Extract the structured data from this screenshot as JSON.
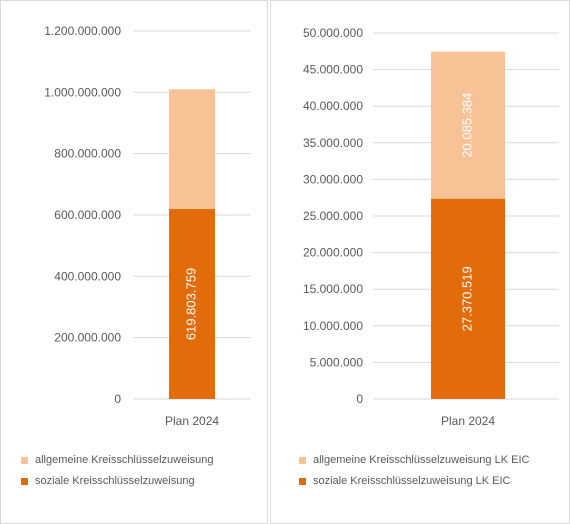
{
  "chart_data": [
    {
      "type": "bar",
      "stacked": true,
      "categories": [
        "Plan 2024"
      ],
      "series": [
        {
          "name": "soziale Kreisschlüsselzuweisung",
          "values": [
            619803759
          ],
          "label": "619.803.759",
          "color": "#e36c0a"
        },
        {
          "name": "allgemeine Kreisschlüsselzuweisung",
          "values": [
            390000000
          ],
          "label": "",
          "color": "#f7c295"
        }
      ],
      "ylim": [
        0,
        1200000000
      ],
      "yticks": [
        "0",
        "200.000.000",
        "400.000.000",
        "600.000.000",
        "800.000.000",
        "1.000.000.000",
        "1.200.000.000"
      ],
      "grid": true,
      "legend": "bottom"
    },
    {
      "type": "bar",
      "stacked": true,
      "categories": [
        "Plan 2024"
      ],
      "series": [
        {
          "name": "soziale Kreisschlüsselzuweisung LK EIC",
          "values": [
            27370519
          ],
          "label": "27.370.519",
          "color": "#e36c0a"
        },
        {
          "name": "allgemeine Kreisschlüsselzuweisung LK EIC",
          "values": [
            20085384
          ],
          "label": "20.085.384",
          "color": "#f7c295"
        }
      ],
      "ylim": [
        0,
        50000000
      ],
      "yticks": [
        "0",
        "5.000.000",
        "10.000.000",
        "15.000.000",
        "20.000.000",
        "25.000.000",
        "30.000.000",
        "35.000.000",
        "40.000.000",
        "45.000.000",
        "50.000.000"
      ],
      "grid": true,
      "legend": "bottom"
    }
  ]
}
